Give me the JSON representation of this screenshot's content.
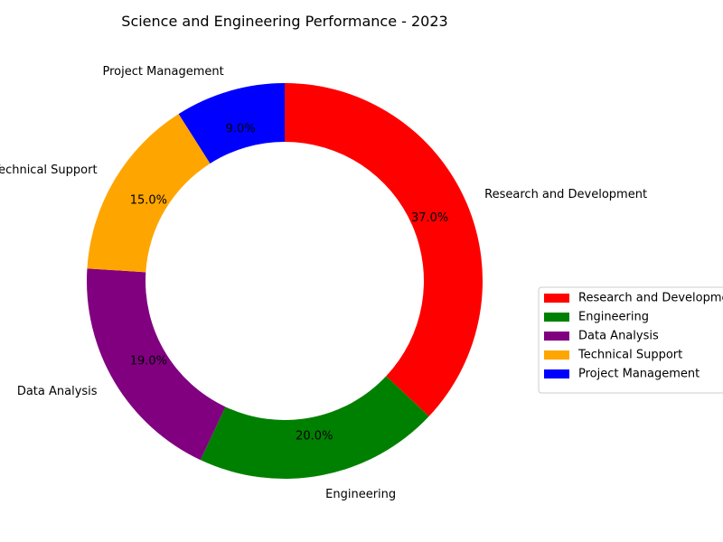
{
  "chart_data": {
    "type": "pie",
    "variant": "donut",
    "title": "Science and Engineering Performance - 2023",
    "categories": [
      "Research and Development",
      "Engineering",
      "Data Analysis",
      "Technical Support",
      "Project Management"
    ],
    "values": [
      37.0,
      20.0,
      19.0,
      15.0,
      9.0
    ],
    "percent_labels": [
      "37.0%",
      "20.0%",
      "19.0%",
      "15.0%",
      "9.0%"
    ],
    "colors": [
      "#ff0000",
      "#008000",
      "#800080",
      "#ffa500",
      "#0000ff"
    ],
    "start_angle_deg": 90,
    "direction": "clockwise",
    "legend": {
      "placement": "right",
      "entries": [
        "Research and Development",
        "Engineering",
        "Data Analysis",
        "Technical Support",
        "Project Management"
      ]
    }
  }
}
